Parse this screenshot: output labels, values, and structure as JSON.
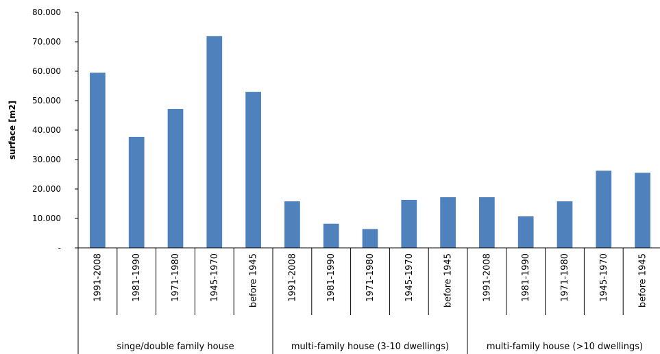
{
  "chart_data": {
    "type": "bar",
    "ylabel": "surface [m2]",
    "ylim": [
      0,
      80000
    ],
    "yticks": [
      0,
      10000,
      20000,
      30000,
      40000,
      50000,
      60000,
      70000,
      80000
    ],
    "ytick_labels": [
      "-",
      "10.000",
      "20.000",
      "30.000",
      "40.000",
      "50.000",
      "60.000",
      "70.000",
      "80.000"
    ],
    "grid": false,
    "bar_color": "#4F81BD",
    "groups": [
      {
        "label": "singe/double family house",
        "categories": [
          "1991-2008",
          "1981-1990",
          "1971-1980",
          "1945-1970",
          "before 1945"
        ],
        "values": [
          59500,
          37700,
          47200,
          71900,
          53000
        ]
      },
      {
        "label": "multi-family house (3-10 dwellings)",
        "categories": [
          "1991-2008",
          "1981-1990",
          "1971-1980",
          "1945-1970",
          "before 1945"
        ],
        "values": [
          15800,
          8200,
          6400,
          16300,
          17200
        ]
      },
      {
        "label": "multi-family house (>10 dwellings)",
        "categories": [
          "1991-2008",
          "1981-1990",
          "1971-1980",
          "1945-1970",
          "before 1945"
        ],
        "values": [
          17200,
          10700,
          15800,
          26200,
          25500
        ]
      }
    ]
  }
}
